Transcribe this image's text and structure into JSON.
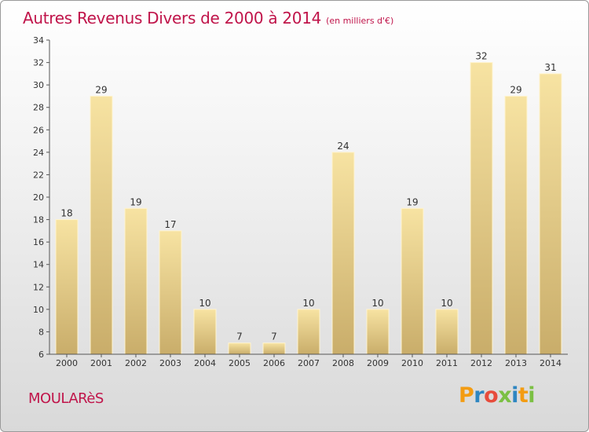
{
  "chart_data": {
    "type": "bar",
    "title": "Autres Revenus Divers de 2000 à 2014",
    "subtitle": "(en milliers d'€)",
    "categories": [
      "2000",
      "2001",
      "2002",
      "2003",
      "2004",
      "2005",
      "2006",
      "2007",
      "2008",
      "2009",
      "2010",
      "2011",
      "2012",
      "2013",
      "2014"
    ],
    "values": [
      18,
      29,
      19,
      17,
      10,
      7,
      7,
      10,
      24,
      10,
      19,
      10,
      32,
      29,
      31
    ],
    "ylim": [
      6,
      34
    ],
    "yticks": [
      6,
      8,
      10,
      12,
      14,
      16,
      18,
      20,
      22,
      24,
      26,
      28,
      30,
      32,
      34
    ],
    "grid": false,
    "bar_color": "#e8cf8a"
  },
  "footer": {
    "town": "MOULARèS",
    "logo_text": "Proxiti",
    "logo_colors": [
      "#f39c12",
      "#2e86c1",
      "#e74c3c",
      "#7bc043",
      "#2e86c1",
      "#f39c12",
      "#7bc043"
    ]
  },
  "colors": {
    "title": "#c0144a",
    "axis": "#555555"
  }
}
